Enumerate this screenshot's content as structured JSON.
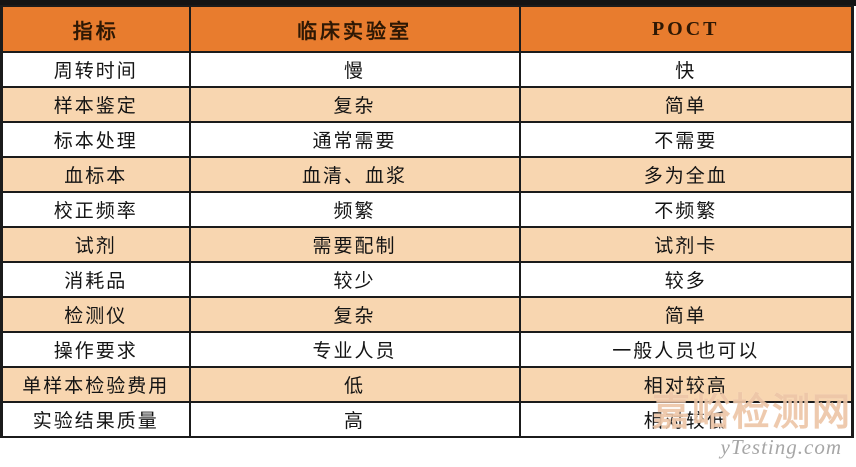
{
  "table": {
    "headers": [
      "指标",
      "临床实验室",
      "POCT"
    ],
    "rows": [
      {
        "indicator": "周转时间",
        "lab": "慢",
        "poct": "快"
      },
      {
        "indicator": "样本鉴定",
        "lab": "复杂",
        "poct": "简单"
      },
      {
        "indicator": "标本处理",
        "lab": "通常需要",
        "poct": "不需要"
      },
      {
        "indicator": "血标本",
        "lab": "血清、血浆",
        "poct": "多为全血"
      },
      {
        "indicator": "校正频率",
        "lab": "频繁",
        "poct": "不频繁"
      },
      {
        "indicator": "试剂",
        "lab": "需要配制",
        "poct": "试剂卡"
      },
      {
        "indicator": "消耗品",
        "lab": "较少",
        "poct": "较多"
      },
      {
        "indicator": "检测仪",
        "lab": "复杂",
        "poct": "简单"
      },
      {
        "indicator": "操作要求",
        "lab": "专业人员",
        "poct": "一般人员也可以"
      },
      {
        "indicator": "单样本检验费用",
        "lab": "低",
        "poct": "相对较高"
      },
      {
        "indicator": "实验结果质量",
        "lab": "高",
        "poct": "相对较低"
      }
    ]
  },
  "watermark": {
    "cn": "嘉峪检测网",
    "en": "yTesting.com"
  },
  "colors": {
    "header_bg": "#E87C2E",
    "row_alt_bg": "#F8D6B0",
    "row_bg": "#FFFFFF",
    "border": "#1B1B1B",
    "header_text": "#2E1804",
    "body_text": "#141414"
  }
}
